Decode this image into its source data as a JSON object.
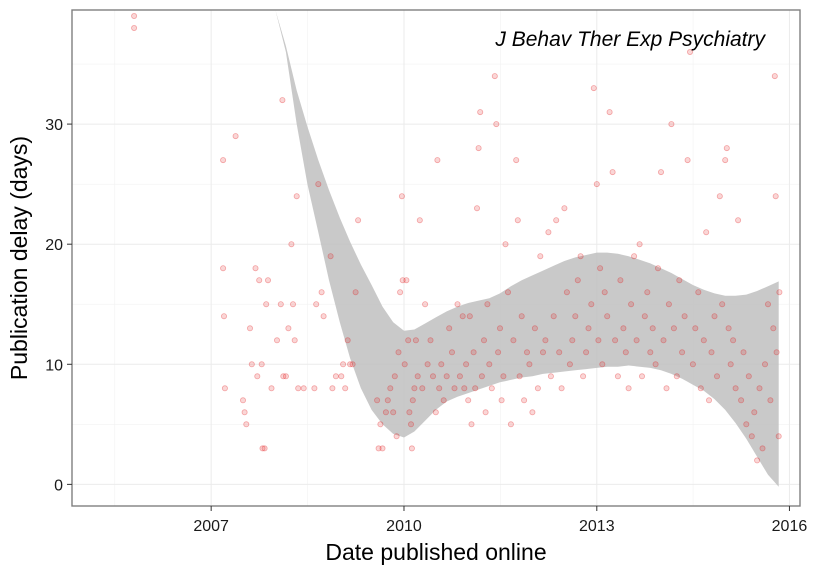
{
  "chart_data": {
    "type": "scatter",
    "title": "",
    "annotation": "J Behav Ther Exp Psychiatry",
    "xlabel": "Date published online",
    "ylabel": "Publication delay (days)",
    "xlim": [
      "2004-11-01",
      "2016-03-01"
    ],
    "ylim": [
      -1.8,
      39.5
    ],
    "x_ticks": [
      "2007-01-01",
      "2010-01-01",
      "2013-01-01",
      "2016-01-01"
    ],
    "x_tick_labels": [
      "2007",
      "2010",
      "2013",
      "2016"
    ],
    "y_ticks": [
      0,
      10,
      20,
      30
    ],
    "y_tick_labels": [
      "0",
      "10",
      "20",
      "30"
    ],
    "grid": true,
    "point_color": "#e31a1c",
    "ribbon_color": "#bfbfbf",
    "series": [
      {
        "values": [
          [
            "2005-10-20",
            39
          ],
          [
            "2005-10-20",
            38
          ],
          [
            "2007-03-10",
            27
          ],
          [
            "2007-03-10",
            18
          ],
          [
            "2007-03-15",
            14
          ],
          [
            "2007-03-20",
            8
          ],
          [
            "2007-05-20",
            29
          ],
          [
            "2007-07-01",
            7
          ],
          [
            "2007-07-10",
            6
          ],
          [
            "2007-07-20",
            5
          ],
          [
            "2007-08-10",
            13
          ],
          [
            "2007-08-20",
            10
          ],
          [
            "2007-09-10",
            18
          ],
          [
            "2007-09-20",
            9
          ],
          [
            "2007-10-01",
            17
          ],
          [
            "2007-10-15",
            10
          ],
          [
            "2007-10-20",
            3
          ],
          [
            "2007-11-01",
            3
          ],
          [
            "2007-11-10",
            15
          ],
          [
            "2007-11-20",
            17
          ],
          [
            "2007-12-10",
            8
          ],
          [
            "2008-01-10",
            12
          ],
          [
            "2008-02-01",
            15
          ],
          [
            "2008-02-10",
            32
          ],
          [
            "2008-02-15",
            9
          ],
          [
            "2008-03-01",
            9
          ],
          [
            "2008-03-15",
            13
          ],
          [
            "2008-04-01",
            20
          ],
          [
            "2008-04-10",
            15
          ],
          [
            "2008-04-20",
            12
          ],
          [
            "2008-05-01",
            24
          ],
          [
            "2008-05-10",
            8
          ],
          [
            "2008-06-10",
            8
          ],
          [
            "2008-08-10",
            8
          ],
          [
            "2008-08-20",
            15
          ],
          [
            "2008-09-01",
            25
          ],
          [
            "2008-09-20",
            16
          ],
          [
            "2008-10-01",
            14
          ],
          [
            "2008-11-10",
            19
          ],
          [
            "2008-11-20",
            8
          ],
          [
            "2008-12-10",
            9
          ],
          [
            "2009-01-10",
            9
          ],
          [
            "2009-01-20",
            10
          ],
          [
            "2009-02-01",
            8
          ],
          [
            "2009-02-15",
            12
          ],
          [
            "2009-03-01",
            10
          ],
          [
            "2009-03-15",
            10
          ],
          [
            "2009-04-01",
            16
          ],
          [
            "2009-04-15",
            22
          ],
          [
            "2009-08-01",
            7
          ],
          [
            "2009-08-10",
            3
          ],
          [
            "2009-08-20",
            5
          ],
          [
            "2009-09-01",
            3
          ],
          [
            "2009-09-20",
            6
          ],
          [
            "2009-10-01",
            7
          ],
          [
            "2009-10-15",
            8
          ],
          [
            "2009-11-01",
            6
          ],
          [
            "2009-11-10",
            9
          ],
          [
            "2009-11-20",
            4
          ],
          [
            "2009-12-01",
            11
          ],
          [
            "2009-12-10",
            16
          ],
          [
            "2009-12-20",
            24
          ],
          [
            "2009-12-25",
            17
          ],
          [
            "2010-01-05",
            10
          ],
          [
            "2010-01-15",
            17
          ],
          [
            "2010-01-25",
            12
          ],
          [
            "2010-02-01",
            6
          ],
          [
            "2010-02-10",
            5
          ],
          [
            "2010-02-15",
            3
          ],
          [
            "2010-02-20",
            7
          ],
          [
            "2010-03-01",
            8
          ],
          [
            "2010-03-10",
            12
          ],
          [
            "2010-03-20",
            9
          ],
          [
            "2010-04-01",
            22
          ],
          [
            "2010-04-15",
            8
          ],
          [
            "2010-05-01",
            15
          ],
          [
            "2010-05-15",
            10
          ],
          [
            "2010-06-01",
            12
          ],
          [
            "2010-06-15",
            9
          ],
          [
            "2010-07-01",
            6
          ],
          [
            "2010-07-10",
            27
          ],
          [
            "2010-07-20",
            8
          ],
          [
            "2010-08-01",
            10
          ],
          [
            "2010-08-15",
            7
          ],
          [
            "2010-09-01",
            9
          ],
          [
            "2010-09-15",
            13
          ],
          [
            "2010-10-01",
            11
          ],
          [
            "2010-10-15",
            8
          ],
          [
            "2010-11-01",
            15
          ],
          [
            "2010-11-15",
            9
          ],
          [
            "2010-12-01",
            14
          ],
          [
            "2010-12-10",
            8
          ],
          [
            "2010-12-20",
            10
          ],
          [
            "2011-01-01",
            7
          ],
          [
            "2011-01-10",
            14
          ],
          [
            "2011-01-20",
            5
          ],
          [
            "2011-02-01",
            11
          ],
          [
            "2011-02-10",
            8
          ],
          [
            "2011-02-20",
            23
          ],
          [
            "2011-03-01",
            28
          ],
          [
            "2011-03-10",
            31
          ],
          [
            "2011-03-20",
            9
          ],
          [
            "2011-04-01",
            12
          ],
          [
            "2011-04-10",
            6
          ],
          [
            "2011-04-20",
            15
          ],
          [
            "2011-05-01",
            10
          ],
          [
            "2011-05-15",
            8
          ],
          [
            "2011-06-01",
            34
          ],
          [
            "2011-06-10",
            30
          ],
          [
            "2011-06-20",
            11
          ],
          [
            "2011-07-01",
            13
          ],
          [
            "2011-07-10",
            7
          ],
          [
            "2011-07-20",
            9
          ],
          [
            "2011-08-01",
            20
          ],
          [
            "2011-08-15",
            16
          ],
          [
            "2011-09-01",
            5
          ],
          [
            "2011-09-15",
            12
          ],
          [
            "2011-10-01",
            27
          ],
          [
            "2011-10-10",
            22
          ],
          [
            "2011-10-20",
            9
          ],
          [
            "2011-11-01",
            14
          ],
          [
            "2011-11-15",
            7
          ],
          [
            "2011-12-01",
            11
          ],
          [
            "2011-12-15",
            10
          ],
          [
            "2012-01-01",
            6
          ],
          [
            "2012-01-15",
            13
          ],
          [
            "2012-02-01",
            8
          ],
          [
            "2012-02-15",
            19
          ],
          [
            "2012-03-01",
            11
          ],
          [
            "2012-03-15",
            12
          ],
          [
            "2012-04-01",
            21
          ],
          [
            "2012-04-15",
            9
          ],
          [
            "2012-05-01",
            14
          ],
          [
            "2012-05-15",
            22
          ],
          [
            "2012-06-01",
            11
          ],
          [
            "2012-06-15",
            8
          ],
          [
            "2012-07-01",
            23
          ],
          [
            "2012-07-15",
            16
          ],
          [
            "2012-08-01",
            10
          ],
          [
            "2012-08-15",
            12
          ],
          [
            "2012-09-01",
            14
          ],
          [
            "2012-09-15",
            17
          ],
          [
            "2012-10-01",
            19
          ],
          [
            "2012-10-15",
            9
          ],
          [
            "2012-11-01",
            11
          ],
          [
            "2012-11-15",
            13
          ],
          [
            "2012-12-01",
            15
          ],
          [
            "2012-12-15",
            33
          ],
          [
            "2013-01-01",
            25
          ],
          [
            "2013-01-10",
            12
          ],
          [
            "2013-01-20",
            18
          ],
          [
            "2013-02-01",
            10
          ],
          [
            "2013-02-15",
            16
          ],
          [
            "2013-03-01",
            14
          ],
          [
            "2013-03-15",
            31
          ],
          [
            "2013-04-01",
            26
          ],
          [
            "2013-04-15",
            12
          ],
          [
            "2013-05-01",
            9
          ],
          [
            "2013-05-15",
            17
          ],
          [
            "2013-06-01",
            13
          ],
          [
            "2013-06-15",
            11
          ],
          [
            "2013-07-01",
            8
          ],
          [
            "2013-07-15",
            15
          ],
          [
            "2013-08-01",
            19
          ],
          [
            "2013-08-15",
            12
          ],
          [
            "2013-09-01",
            20
          ],
          [
            "2013-09-15",
            9
          ],
          [
            "2013-10-01",
            14
          ],
          [
            "2013-10-15",
            16
          ],
          [
            "2013-11-01",
            11
          ],
          [
            "2013-11-15",
            13
          ],
          [
            "2013-12-01",
            10
          ],
          [
            "2013-12-15",
            18
          ],
          [
            "2014-01-01",
            26
          ],
          [
            "2014-01-15",
            12
          ],
          [
            "2014-02-01",
            8
          ],
          [
            "2014-02-15",
            15
          ],
          [
            "2014-03-01",
            30
          ],
          [
            "2014-03-15",
            13
          ],
          [
            "2014-04-01",
            9
          ],
          [
            "2014-04-15",
            17
          ],
          [
            "2014-05-01",
            11
          ],
          [
            "2014-05-15",
            14
          ],
          [
            "2014-06-01",
            27
          ],
          [
            "2014-06-15",
            36
          ],
          [
            "2014-07-01",
            10
          ],
          [
            "2014-07-15",
            13
          ],
          [
            "2014-08-01",
            16
          ],
          [
            "2014-08-15",
            8
          ],
          [
            "2014-09-01",
            12
          ],
          [
            "2014-09-15",
            21
          ],
          [
            "2014-10-01",
            7
          ],
          [
            "2014-10-15",
            11
          ],
          [
            "2014-11-01",
            14
          ],
          [
            "2014-11-15",
            9
          ],
          [
            "2014-12-01",
            24
          ],
          [
            "2014-12-15",
            15
          ],
          [
            "2015-01-01",
            27
          ],
          [
            "2015-01-10",
            28
          ],
          [
            "2015-01-20",
            13
          ],
          [
            "2015-02-01",
            10
          ],
          [
            "2015-02-15",
            12
          ],
          [
            "2015-03-01",
            8
          ],
          [
            "2015-03-15",
            22
          ],
          [
            "2015-04-01",
            7
          ],
          [
            "2015-04-15",
            11
          ],
          [
            "2015-05-01",
            5
          ],
          [
            "2015-05-15",
            9
          ],
          [
            "2015-06-01",
            4
          ],
          [
            "2015-06-15",
            6
          ],
          [
            "2015-07-01",
            2
          ],
          [
            "2015-07-15",
            8
          ],
          [
            "2015-08-01",
            3
          ],
          [
            "2015-08-15",
            10
          ],
          [
            "2015-09-01",
            15
          ],
          [
            "2015-09-15",
            7
          ],
          [
            "2015-10-01",
            13
          ],
          [
            "2015-10-10",
            34
          ],
          [
            "2015-10-15",
            24
          ],
          [
            "2015-10-20",
            11
          ],
          [
            "2015-11-01",
            4
          ],
          [
            "2015-11-05",
            16
          ]
        ]
      }
    ],
    "smooth": {
      "x": [
        "2007-11-01",
        "2008-01-01",
        "2008-03-01",
        "2008-05-01",
        "2008-07-01",
        "2008-09-01",
        "2008-11-01",
        "2009-01-01",
        "2009-03-01",
        "2009-05-01",
        "2009-07-01",
        "2009-09-01",
        "2009-11-01",
        "2010-01-01",
        "2010-03-01",
        "2010-05-01",
        "2010-07-01",
        "2010-09-01",
        "2010-11-01",
        "2011-01-01",
        "2011-03-01",
        "2011-05-01",
        "2011-07-01",
        "2011-09-01",
        "2011-11-01",
        "2012-01-01",
        "2012-03-01",
        "2012-05-01",
        "2012-07-01",
        "2012-09-01",
        "2012-11-01",
        "2013-01-01",
        "2013-03-01",
        "2013-05-01",
        "2013-07-01",
        "2013-09-01",
        "2013-11-01",
        "2014-01-01",
        "2014-03-01",
        "2014-05-01",
        "2014-07-01",
        "2014-09-01",
        "2014-11-01",
        "2015-01-01",
        "2015-03-01",
        "2015-05-01",
        "2015-07-01",
        "2015-09-01",
        "2015-11-01"
      ],
      "upper": [
        39.5,
        39.5,
        36.5,
        32.8,
        29.8,
        27.0,
        24.5,
        22.2,
        20.2,
        18.3,
        16.6,
        14.8,
        13.5,
        12.8,
        12.9,
        13.4,
        13.9,
        14.4,
        14.8,
        15.1,
        15.3,
        15.5,
        15.9,
        16.5,
        17.0,
        17.4,
        17.8,
        18.2,
        18.6,
        18.9,
        19.1,
        19.3,
        19.3,
        19.2,
        19.0,
        18.7,
        18.4,
        18.0,
        17.6,
        17.1,
        16.6,
        16.2,
        15.9,
        15.7,
        15.7,
        15.8,
        16.1,
        16.5,
        16.9
      ],
      "lower": [
        39.5,
        39.5,
        36.0,
        30.0,
        25.0,
        21.0,
        17.0,
        13.5,
        10.5,
        8.0,
        6.2,
        5.0,
        4.2,
        3.9,
        4.4,
        5.3,
        6.2,
        6.9,
        7.3,
        7.6,
        7.9,
        8.2,
        8.5,
        8.7,
        8.9,
        9.0,
        9.2,
        9.3,
        9.4,
        9.5,
        9.6,
        9.7,
        9.8,
        9.8,
        9.9,
        9.8,
        9.7,
        9.5,
        9.2,
        8.8,
        8.3,
        7.8,
        7.1,
        6.2,
        5.1,
        3.8,
        2.3,
        0.8,
        -0.2
      ]
    }
  }
}
